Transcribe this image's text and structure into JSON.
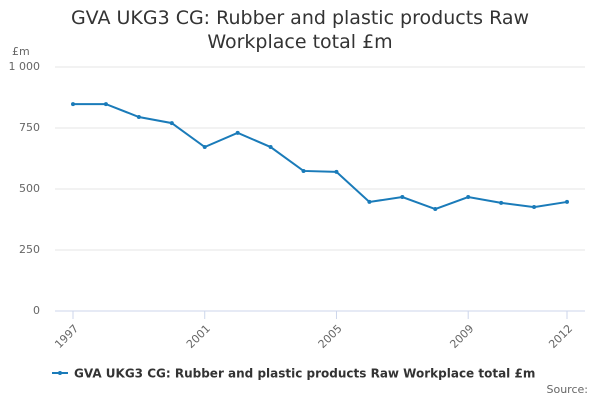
{
  "chart_data": {
    "type": "line",
    "title": "GVA UKG3 CG: Rubber and plastic products Raw Workplace total £m",
    "y_label": "£m",
    "source": "Source:",
    "x": [
      1997,
      1998,
      1999,
      2000,
      2001,
      2002,
      2003,
      2004,
      2005,
      2006,
      2007,
      2008,
      2009,
      2010,
      2011,
      2012
    ],
    "series": [
      {
        "name": "GVA UKG3 CG: Rubber and plastic products Raw Workplace total £m",
        "color": "#1a7bb9",
        "values": [
          848,
          848,
          795,
          770,
          672,
          730,
          672,
          574,
          570,
          447,
          467,
          418,
          467,
          443,
          426,
          447
        ]
      }
    ],
    "xlim": [
      1997,
      2012
    ],
    "xticks": [
      1997,
      2001,
      2005,
      2009,
      2012
    ],
    "ylim": [
      0,
      1000
    ],
    "yticks": [
      0,
      250,
      500,
      750,
      {
        "value": 1000,
        "label": "1 000"
      }
    ],
    "grid": true
  }
}
